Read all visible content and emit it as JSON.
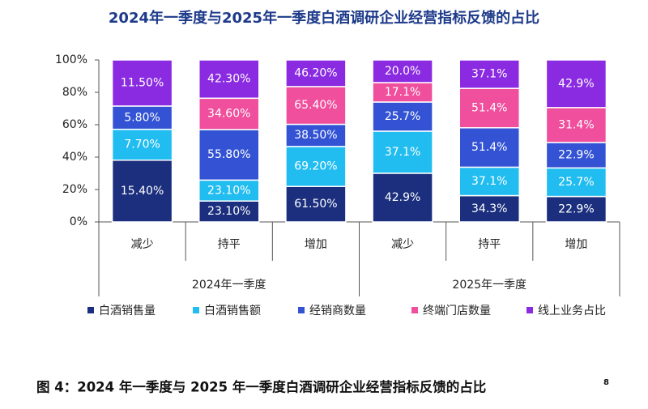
{
  "chart_data": {
    "type": "bar",
    "stack": "percent",
    "title": "2024年一季度与2025年一季度白酒调研企业经营指标反馈的占比",
    "groups": [
      {
        "name": "2024年一季度",
        "categories": [
          "减少",
          "持平",
          "增加"
        ]
      },
      {
        "name": "2025年一季度",
        "categories": [
          "减少",
          "持平",
          "增加"
        ]
      }
    ],
    "series": [
      {
        "name": "白酒销售量",
        "color": "#1b2f7e",
        "values": [
          15.4,
          23.1,
          61.5,
          42.9,
          34.3,
          22.9
        ],
        "value_labels": [
          "15.40%",
          "23.10%",
          "61.50%",
          "42.9%",
          "34.3%",
          "22.9%"
        ]
      },
      {
        "name": "白酒销售额",
        "color": "#22bdf0",
        "values": [
          7.7,
          23.1,
          69.2,
          37.1,
          37.1,
          25.7
        ],
        "value_labels": [
          "7.70%",
          "23.10%",
          "69.20%",
          "37.1%",
          "37.1%",
          "25.7%"
        ]
      },
      {
        "name": "经销商数量",
        "color": "#3353d4",
        "values": [
          5.8,
          55.8,
          38.5,
          25.7,
          51.4,
          22.9
        ],
        "value_labels": [
          "5.80%",
          "55.80%",
          "38.50%",
          "25.7%",
          "51.4%",
          "22.9%"
        ]
      },
      {
        "name": "终端门店数量",
        "color": "#ef4f9c",
        "values": [
          null,
          34.6,
          65.4,
          17.1,
          51.4,
          31.4
        ],
        "value_labels": [
          null,
          "34.60%",
          "65.40%",
          "17.1%",
          "51.4%",
          "31.4%"
        ]
      },
      {
        "name": "线上业务占比",
        "color": "#8a2be2",
        "values": [
          11.5,
          42.3,
          46.2,
          20.0,
          37.1,
          42.9
        ],
        "value_labels": [
          "11.50%",
          "42.30%",
          "46.20%",
          "20.0%",
          "37.1%",
          "42.9%"
        ]
      }
    ],
    "ylim": [
      0,
      100
    ],
    "yticks": [
      {
        "value": 0,
        "label": "0%"
      },
      {
        "value": 20,
        "label": "20%"
      },
      {
        "value": 40,
        "label": "40%"
      },
      {
        "value": 60,
        "label": "60%"
      },
      {
        "value": 80,
        "label": "80%"
      },
      {
        "value": 100,
        "label": "100%"
      }
    ],
    "grid": false
  },
  "caption": {
    "text": "图 4：2024 年一季度与 2025 年一季度白酒调研企业经营指标反馈的占比",
    "footnote": "8"
  }
}
